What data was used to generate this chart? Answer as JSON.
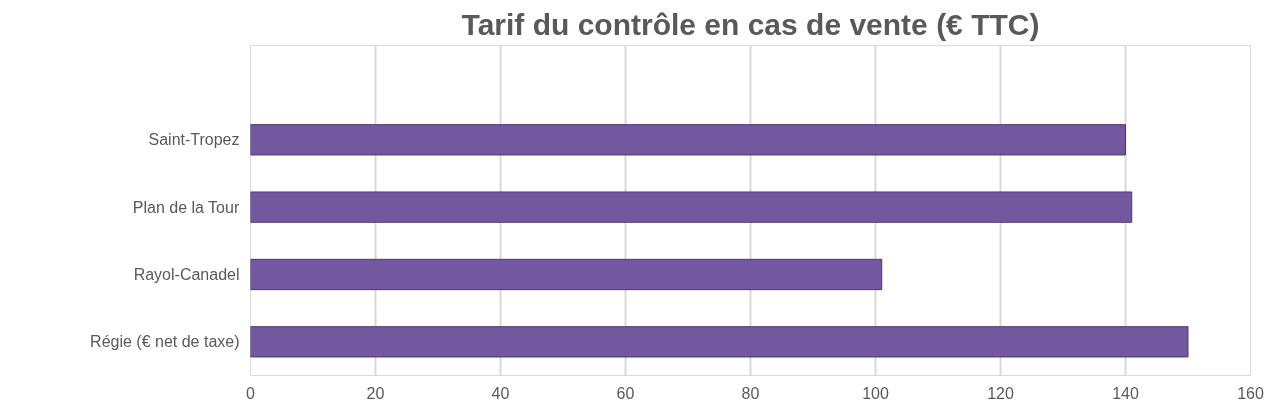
{
  "chart_data": {
    "type": "bar",
    "orientation": "horizontal",
    "title": "Tarif du contrôle en cas de vente (€ TTC)",
    "categories": [
      "Saint-Tropez",
      "Plan de la Tour",
      "Rayol-Canadel",
      "Régie (€ net de taxe)"
    ],
    "values": [
      140,
      141,
      101,
      150
    ],
    "color": "#7358a0",
    "xlim": [
      0,
      160
    ],
    "xticks": [
      0,
      20,
      40,
      60,
      80,
      100,
      120,
      140,
      160
    ],
    "grid": "x"
  }
}
